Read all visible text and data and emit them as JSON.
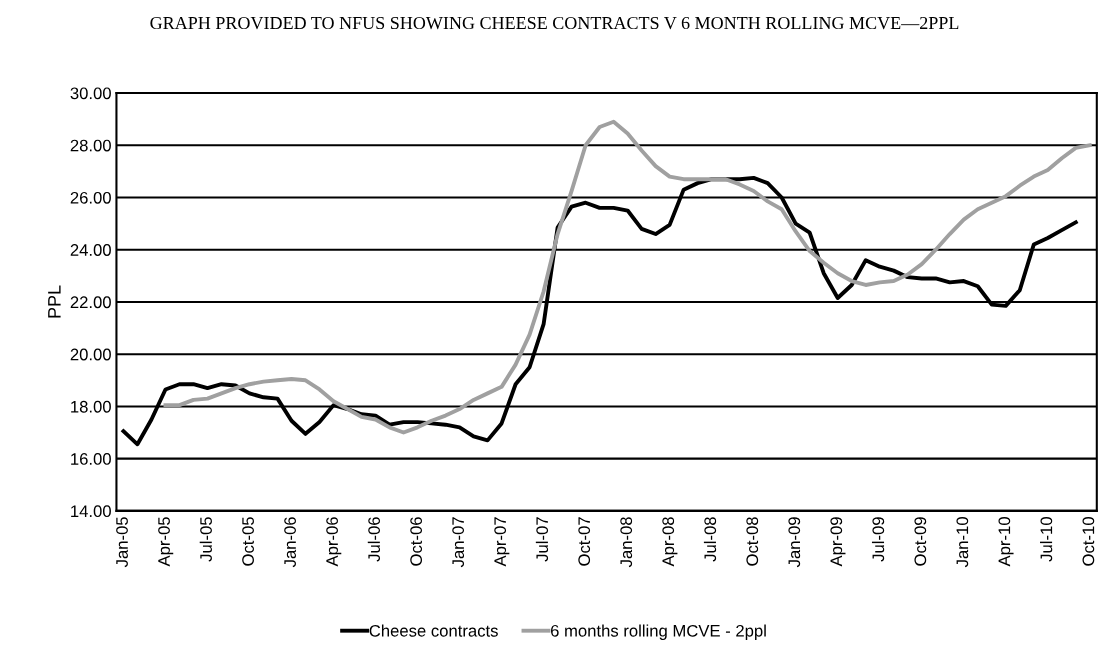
{
  "chart_data": {
    "type": "line",
    "title": "GRAPH PROVIDED TO NFUS SHOWING CHEESE CONTRACTS V 6 MONTH ROLLING MCVE—2PPL",
    "ylabel": "PPL",
    "categories": [
      "Jan-05",
      null,
      null,
      "Apr-05",
      null,
      null,
      "Jul-05",
      null,
      null,
      "Oct-05",
      null,
      null,
      "Jan-06",
      null,
      null,
      "Apr-06",
      null,
      null,
      "Jul-06",
      null,
      null,
      "Oct-06",
      null,
      null,
      "Jan-07",
      null,
      null,
      "Apr-07",
      null,
      null,
      "Jul-07",
      null,
      null,
      "Oct-07",
      null,
      null,
      "Jan-08",
      null,
      null,
      "Apr-08",
      null,
      null,
      "Jul-08",
      null,
      null,
      "Oct-08",
      null,
      null,
      "Jan-09",
      null,
      null,
      "Apr-09",
      null,
      null,
      "Jul-09",
      null,
      null,
      "Oct-09",
      null,
      null,
      "Jan-10",
      null,
      null,
      "Apr-10",
      null,
      null,
      "Jul-10",
      null,
      null,
      "Oct-10"
    ],
    "series": [
      {
        "name": "Cheese contracts",
        "color": "#000000",
        "values": [
          17.05,
          16.55,
          17.5,
          18.65,
          18.85,
          18.85,
          18.7,
          18.85,
          18.8,
          18.5,
          18.35,
          18.3,
          17.45,
          16.95,
          17.4,
          18.05,
          17.9,
          17.7,
          17.65,
          17.3,
          17.4,
          17.4,
          17.35,
          17.3,
          17.2,
          16.85,
          16.7,
          17.35,
          18.85,
          19.5,
          21.15,
          24.85,
          25.65,
          25.8,
          25.6,
          25.6,
          25.5,
          24.8,
          24.6,
          24.95,
          26.3,
          26.55,
          26.7,
          26.7,
          26.7,
          26.75,
          26.55,
          26.0,
          25.0,
          24.65,
          23.1,
          22.15,
          22.65,
          23.6,
          23.35,
          23.2,
          22.95,
          22.9,
          22.9,
          22.75,
          22.8,
          22.6,
          21.9,
          21.85,
          22.45,
          24.2,
          24.45,
          24.75,
          25.05,
          null
        ]
      },
      {
        "name": "6 months rolling MCVE - 2ppl",
        "color": "#a0a0a0",
        "values": [
          null,
          null,
          null,
          18.05,
          18.05,
          18.25,
          18.3,
          18.5,
          18.7,
          18.85,
          18.95,
          19.0,
          19.05,
          19.0,
          18.65,
          18.2,
          17.9,
          17.6,
          17.5,
          17.2,
          17.0,
          17.2,
          17.45,
          17.65,
          17.9,
          18.25,
          18.5,
          18.75,
          19.6,
          20.75,
          22.4,
          24.6,
          26.25,
          28.0,
          28.7,
          28.9,
          28.45,
          27.8,
          27.2,
          26.8,
          26.7,
          26.7,
          26.7,
          26.7,
          26.5,
          26.25,
          25.85,
          25.55,
          24.7,
          23.95,
          23.5,
          23.1,
          22.8,
          22.65,
          22.75,
          22.8,
          23.05,
          23.45,
          24.0,
          24.6,
          25.15,
          25.55,
          25.8,
          26.05,
          26.45,
          26.8,
          27.05,
          27.5,
          27.9,
          28.0
        ]
      }
    ],
    "ylim": [
      14,
      30
    ],
    "yticks": [
      {
        "value": 14,
        "label": "14.00"
      },
      {
        "value": 16,
        "label": "16.00"
      },
      {
        "value": 18,
        "label": "18.00"
      },
      {
        "value": 20,
        "label": "20.00"
      },
      {
        "value": 22,
        "label": "22.00"
      },
      {
        "value": 24,
        "label": "24.00"
      },
      {
        "value": 26,
        "label": "26.00"
      },
      {
        "value": 28,
        "label": "28.00"
      },
      {
        "value": 30,
        "label": "30.00"
      }
    ],
    "grid": "y",
    "legend": "bottom",
    "marker": "none",
    "line_style": "solid"
  }
}
